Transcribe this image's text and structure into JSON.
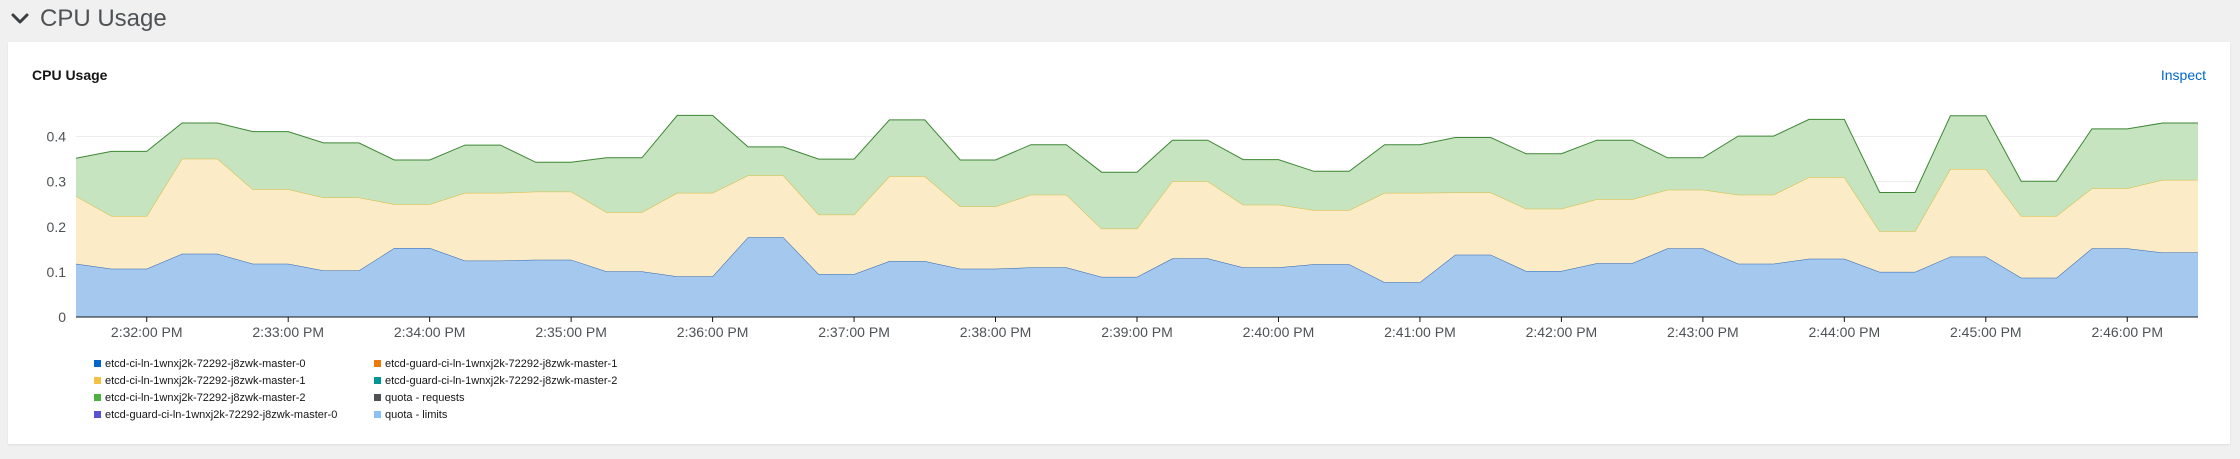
{
  "section": {
    "title": "CPU Usage"
  },
  "card": {
    "title": "CPU Usage",
    "inspect_label": "Inspect"
  },
  "chart_data": {
    "type": "area",
    "title": "CPU Usage",
    "stacked": true,
    "ylim": [
      0,
      0.45
    ],
    "yticks": [
      0,
      0.1,
      0.2,
      0.3,
      0.4
    ],
    "ytick_labels": [
      "0",
      "0.1",
      "0.2",
      "0.3",
      "0.4"
    ],
    "xlim": [
      "2:31:30 PM",
      "2:46:30 PM"
    ],
    "xticks": [
      "2:32:00 PM",
      "2:33:00 PM",
      "2:34:00 PM",
      "2:35:00 PM",
      "2:36:00 PM",
      "2:37:00 PM",
      "2:38:00 PM",
      "2:39:00 PM",
      "2:40:00 PM",
      "2:41:00 PM",
      "2:42:00 PM",
      "2:43:00 PM",
      "2:44:00 PM",
      "2:45:00 PM",
      "2:46:00 PM"
    ],
    "x": [
      "2:31:30 PM",
      "2:31:45 PM",
      "2:32:00 PM",
      "2:32:15 PM",
      "2:32:30 PM",
      "2:32:45 PM",
      "2:33:00 PM",
      "2:33:15 PM",
      "2:33:30 PM",
      "2:33:45 PM",
      "2:34:00 PM",
      "2:34:15 PM",
      "2:34:30 PM",
      "2:34:45 PM",
      "2:35:00 PM",
      "2:35:15 PM",
      "2:35:30 PM",
      "2:35:45 PM",
      "2:36:00 PM",
      "2:36:15 PM",
      "2:36:30 PM",
      "2:36:45 PM",
      "2:37:00 PM",
      "2:37:15 PM",
      "2:37:30 PM",
      "2:37:45 PM",
      "2:38:00 PM",
      "2:38:15 PM",
      "2:38:30 PM",
      "2:38:45 PM",
      "2:39:00 PM",
      "2:39:15 PM",
      "2:39:30 PM",
      "2:39:45 PM",
      "2:40:00 PM",
      "2:40:15 PM",
      "2:40:30 PM",
      "2:40:45 PM",
      "2:41:00 PM",
      "2:41:15 PM",
      "2:41:30 PM",
      "2:41:45 PM",
      "2:42:00 PM",
      "2:42:15 PM",
      "2:42:30 PM",
      "2:42:45 PM",
      "2:43:00 PM",
      "2:43:15 PM",
      "2:43:30 PM",
      "2:43:45 PM",
      "2:44:00 PM",
      "2:44:15 PM",
      "2:44:30 PM",
      "2:44:45 PM",
      "2:45:00 PM",
      "2:45:15 PM",
      "2:45:30 PM",
      "2:45:45 PM",
      "2:46:00 PM",
      "2:46:15 PM",
      "2:46:30 PM"
    ],
    "series": [
      {
        "name": "etcd-ci-ln-1wnxj2k-72292-j8zwk-master-0",
        "color": "#a4c8ee",
        "line_color": "#2b63b0",
        "values": [
          0.118,
          0.107,
          0.107,
          0.14,
          0.14,
          0.118,
          0.118,
          0.103,
          0.103,
          0.153,
          0.153,
          0.125,
          0.125,
          0.127,
          0.127,
          0.101,
          0.101,
          0.09,
          0.09,
          0.177,
          0.177,
          0.095,
          0.095,
          0.124,
          0.124,
          0.107,
          0.107,
          0.11,
          0.11,
          0.089,
          0.089,
          0.13,
          0.13,
          0.11,
          0.11,
          0.117,
          0.117,
          0.077,
          0.077,
          0.138,
          0.138,
          0.102,
          0.102,
          0.119,
          0.119,
          0.152,
          0.152,
          0.118,
          0.118,
          0.129,
          0.129,
          0.1,
          0.1,
          0.134,
          0.134,
          0.087,
          0.087,
          0.152,
          0.152,
          0.143,
          0.143
        ]
      },
      {
        "name": "etcd-ci-ln-1wnxj2k-72292-j8zwk-master-1",
        "color": "#fcebc7",
        "line_color": "#d4bb3a",
        "values": [
          0.15,
          0.117,
          0.117,
          0.211,
          0.211,
          0.165,
          0.165,
          0.162,
          0.162,
          0.097,
          0.097,
          0.15,
          0.15,
          0.151,
          0.151,
          0.131,
          0.131,
          0.185,
          0.185,
          0.137,
          0.137,
          0.132,
          0.132,
          0.188,
          0.188,
          0.138,
          0.138,
          0.161,
          0.161,
          0.107,
          0.107,
          0.171,
          0.171,
          0.139,
          0.139,
          0.12,
          0.12,
          0.198,
          0.198,
          0.138,
          0.138,
          0.138,
          0.138,
          0.142,
          0.142,
          0.13,
          0.13,
          0.153,
          0.153,
          0.181,
          0.181,
          0.09,
          0.09,
          0.194,
          0.194,
          0.137,
          0.137,
          0.133,
          0.133,
          0.161,
          0.161
        ]
      },
      {
        "name": "etcd-ci-ln-1wnxj2k-72292-j8zwk-master-2",
        "color": "#c7e4c1",
        "line_color": "#3e8635",
        "values": [
          0.084,
          0.143,
          0.143,
          0.079,
          0.079,
          0.128,
          0.128,
          0.121,
          0.121,
          0.098,
          0.098,
          0.106,
          0.106,
          0.065,
          0.065,
          0.121,
          0.121,
          0.172,
          0.172,
          0.063,
          0.063,
          0.123,
          0.123,
          0.125,
          0.125,
          0.103,
          0.103,
          0.111,
          0.111,
          0.125,
          0.125,
          0.091,
          0.091,
          0.1,
          0.1,
          0.086,
          0.086,
          0.107,
          0.107,
          0.122,
          0.122,
          0.122,
          0.122,
          0.131,
          0.131,
          0.071,
          0.071,
          0.13,
          0.13,
          0.128,
          0.128,
          0.086,
          0.086,
          0.118,
          0.118,
          0.077,
          0.077,
          0.132,
          0.132,
          0.126,
          0.126
        ]
      }
    ],
    "legend": [
      {
        "label": "etcd-ci-ln-1wnxj2k-72292-j8zwk-master-0",
        "color": "#0066cc"
      },
      {
        "label": "etcd-guard-ci-ln-1wnxj2k-72292-j8zwk-master-1",
        "color": "#ec7a08"
      },
      {
        "label": "etcd-ci-ln-1wnxj2k-72292-j8zwk-master-1",
        "color": "#f4c145"
      },
      {
        "label": "etcd-guard-ci-ln-1wnxj2k-72292-j8zwk-master-2",
        "color": "#009596"
      },
      {
        "label": "etcd-ci-ln-1wnxj2k-72292-j8zwk-master-2",
        "color": "#4cb140"
      },
      {
        "label": "quota - requests",
        "color": "#4f5255"
      },
      {
        "label": "etcd-guard-ci-ln-1wnxj2k-72292-j8zwk-master-0",
        "color": "#5752d1"
      },
      {
        "label": "quota - limits",
        "color": "#8bc1f7"
      }
    ],
    "legend_position": "bottom-left",
    "grid": "horizontal"
  },
  "icons": {
    "toggle": "chevron-down-icon"
  }
}
